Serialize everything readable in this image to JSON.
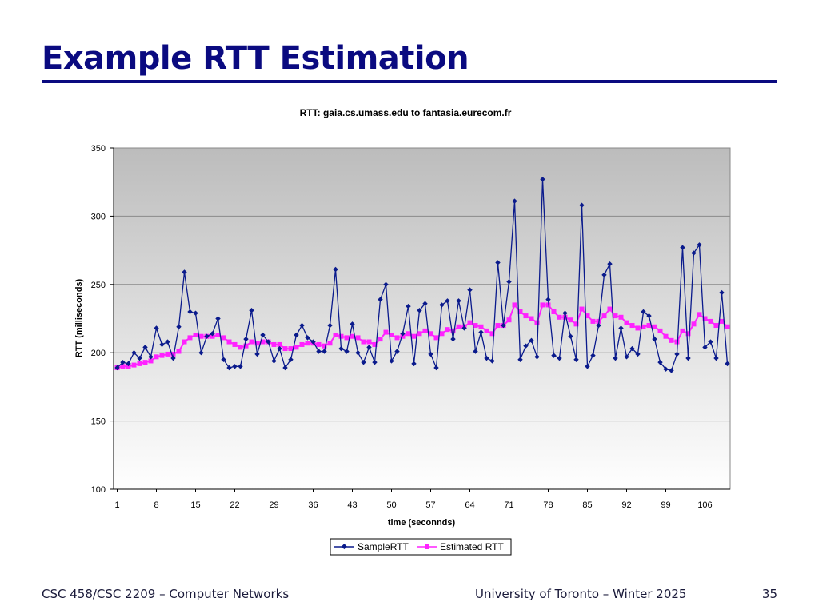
{
  "slide": {
    "title": "Example RTT Estimation",
    "footer_left": "CSC 458/CSC 2209 – Computer Networks",
    "footer_center": "University of Toronto – Winter 2025",
    "page_number": "35"
  },
  "colors": {
    "title": "#0a0a80",
    "sample_series": "#0a1a8c",
    "estimated_series": "#ff22ff",
    "plot_top": "#bcbcbc",
    "plot_bottom": "#ffffff"
  },
  "chart_data": {
    "type": "line",
    "title": "RTT: gaia.cs.umass.edu to fantasia.eurecom.fr",
    "xlabel": "time (seconnds)",
    "ylabel": "RTT (milliseconds)",
    "ylim": [
      100,
      350
    ],
    "yticks": [
      100,
      150,
      200,
      250,
      300,
      350
    ],
    "xticks": [
      1,
      8,
      15,
      22,
      29,
      36,
      43,
      50,
      57,
      64,
      71,
      78,
      85,
      92,
      99,
      106
    ],
    "xlim": [
      1,
      111
    ],
    "grid": true,
    "legend_position": "bottom-center",
    "series": [
      {
        "name": "SampleRTT",
        "marker": "diamond",
        "values": [
          189,
          193,
          192,
          200,
          196,
          204,
          197,
          218,
          206,
          208,
          196,
          219,
          259,
          230,
          229,
          200,
          212,
          214,
          225,
          195,
          189,
          190,
          190,
          210,
          231,
          199,
          213,
          208,
          194,
          203,
          189,
          195,
          213,
          220,
          211,
          208,
          201,
          201,
          220,
          261,
          203,
          201,
          221,
          200,
          193,
          204,
          193,
          239,
          250,
          194,
          201,
          214,
          234,
          192,
          231,
          236,
          199,
          189,
          235,
          238,
          210,
          238,
          218,
          246,
          201,
          215,
          196,
          194,
          266,
          220,
          252,
          311,
          195,
          205,
          209,
          197,
          327,
          239,
          198,
          196,
          229,
          212,
          195,
          308,
          190,
          198,
          220,
          257,
          265,
          196,
          218,
          197,
          203,
          199,
          230,
          227,
          210,
          193,
          188,
          187,
          199,
          277,
          196,
          273,
          279,
          204,
          208,
          196,
          244,
          192
        ]
      },
      {
        "name": "Estimated RTT",
        "marker": "square",
        "values": [
          189,
          190,
          190,
          191,
          192,
          193,
          194,
          197,
          198,
          199,
          199,
          201,
          208,
          211,
          213,
          212,
          212,
          212,
          213,
          211,
          208,
          206,
          204,
          205,
          208,
          207,
          208,
          208,
          206,
          206,
          203,
          203,
          204,
          206,
          207,
          207,
          206,
          205,
          207,
          213,
          212,
          211,
          212,
          211,
          208,
          208,
          206,
          210,
          215,
          213,
          211,
          212,
          214,
          212,
          214,
          216,
          214,
          211,
          214,
          217,
          216,
          219,
          219,
          222,
          220,
          219,
          216,
          214,
          220,
          220,
          224,
          235,
          230,
          227,
          225,
          222,
          235,
          235,
          230,
          226,
          226,
          224,
          221,
          232,
          227,
          223,
          223,
          227,
          232,
          227,
          226,
          222,
          220,
          218,
          219,
          220,
          219,
          216,
          212,
          209,
          208,
          216,
          214,
          221,
          228,
          225,
          223,
          220,
          223,
          219
        ]
      }
    ]
  }
}
